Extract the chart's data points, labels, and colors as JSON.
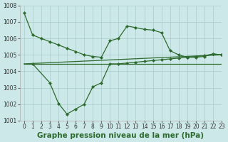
{
  "background_color": "#cce8e8",
  "grid_color": "#aacccc",
  "line_color": "#2d6a2d",
  "title": "Graphe pression niveau de la mer (hPa)",
  "xlim": [
    -0.5,
    23
  ],
  "ylim": [
    1001,
    1008
  ],
  "xticks": [
    0,
    1,
    2,
    3,
    4,
    5,
    6,
    7,
    8,
    9,
    10,
    11,
    12,
    13,
    14,
    15,
    16,
    17,
    18,
    19,
    20,
    21,
    22,
    23
  ],
  "yticks": [
    1001,
    1002,
    1003,
    1004,
    1005,
    1006,
    1007,
    1008
  ],
  "line1_x": [
    0,
    1,
    2,
    3,
    4,
    5,
    6,
    7,
    8,
    9,
    10,
    11,
    12,
    13,
    14,
    15,
    16,
    17,
    18,
    19,
    20,
    21,
    22,
    23
  ],
  "line1_y": [
    1007.55,
    1006.2,
    1006.0,
    1005.8,
    1005.6,
    1005.4,
    1005.2,
    1005.0,
    1004.9,
    1004.85,
    1005.85,
    1006.0,
    1006.75,
    1006.65,
    1006.55,
    1006.5,
    1006.35,
    1005.25,
    1005.0,
    1004.85,
    1004.85,
    1004.9,
    1005.05,
    1005.0
  ],
  "line2_x": [
    0,
    23
  ],
  "line2_y": [
    1004.45,
    1004.45
  ],
  "line3_x": [
    0,
    23
  ],
  "line3_y": [
    1004.45,
    1005.0
  ],
  "line4_x": [
    1,
    3,
    4,
    5,
    6,
    7,
    8,
    9,
    10,
    11,
    12,
    13,
    14,
    15,
    16,
    17,
    18,
    19,
    20,
    21,
    22,
    23
  ],
  "line4_y": [
    1004.45,
    1003.3,
    1002.05,
    1001.4,
    1001.7,
    1002.0,
    1003.05,
    1003.3,
    1004.45,
    1004.45,
    1004.5,
    1004.55,
    1004.6,
    1004.65,
    1004.7,
    1004.75,
    1004.8,
    1004.85,
    1004.9,
    1004.95,
    1005.05,
    1005.0
  ],
  "title_fontsize": 7.5,
  "tick_fontsize": 5.5
}
